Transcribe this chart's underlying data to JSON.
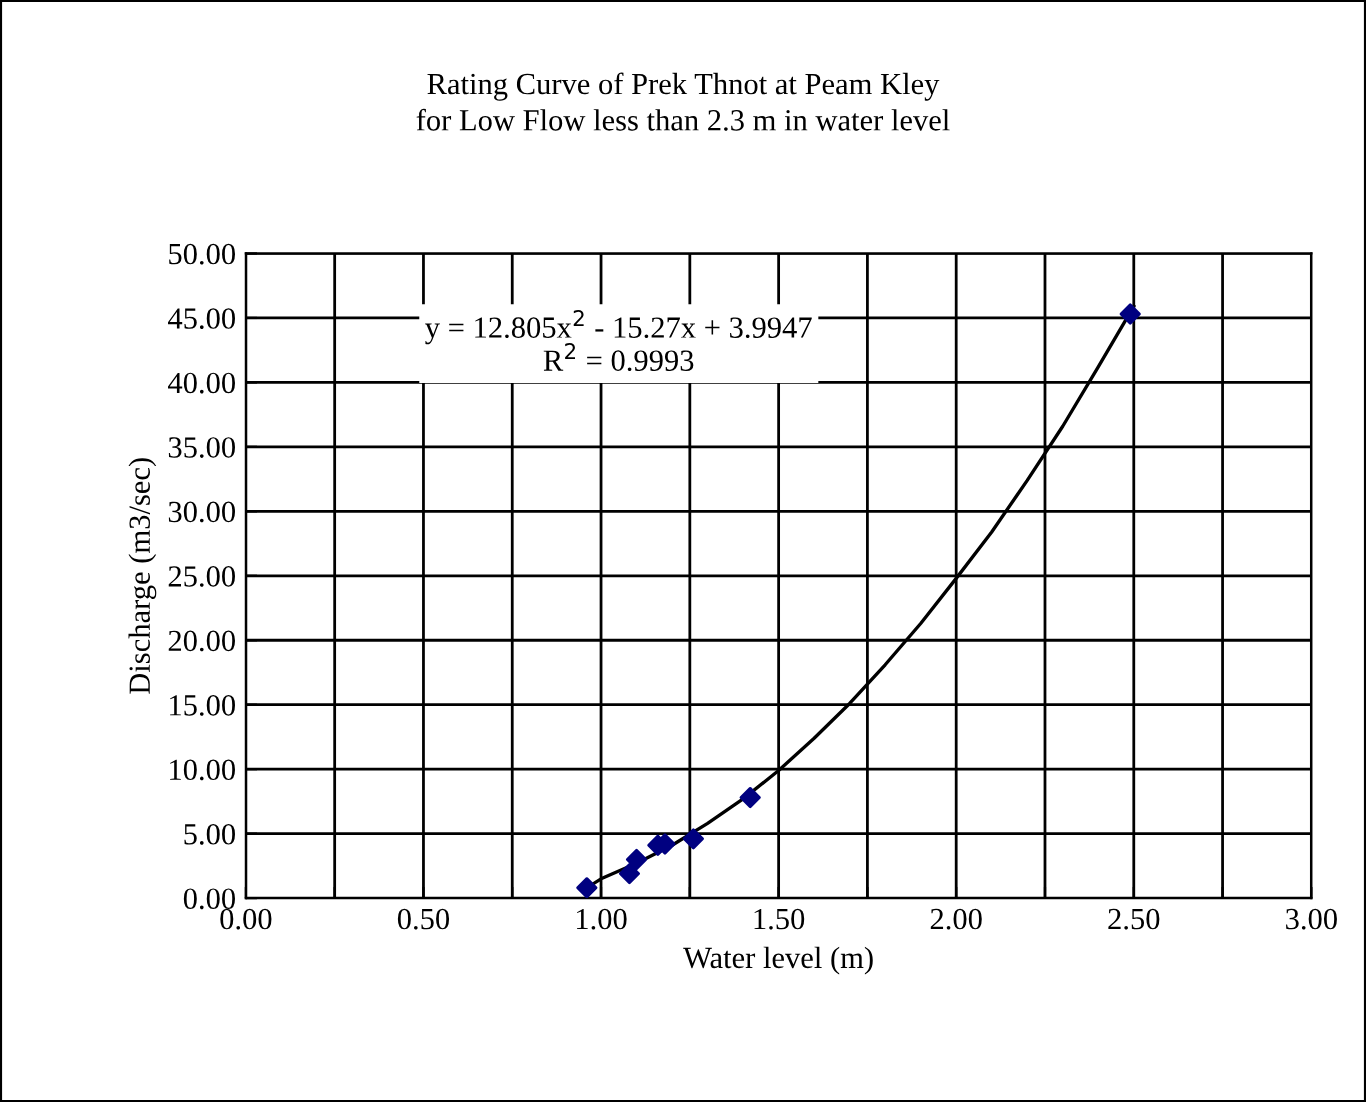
{
  "chart_data": {
    "type": "scatter",
    "title": "Rating Curve of Prek Thnot at Peam Kley\nfor Low Flow less than 2.3 m in water level",
    "xlabel": "Water level (m)",
    "ylabel": "Discharge (m3/sec)",
    "series": [
      {
        "color": "#000080",
        "marker": "diamond",
        "x": [
          0.96,
          1.08,
          1.1,
          1.16,
          1.18,
          1.26,
          1.42,
          2.49
        ],
        "values": [
          0.8,
          1.9,
          3.0,
          4.1,
          4.2,
          4.6,
          7.8,
          45.3
        ]
      },
      {
        "type": "line",
        "color": "#000000",
        "marker": "none",
        "line_style": "solid",
        "x": [
          0.96,
          1.0,
          1.1,
          1.2,
          1.3,
          1.4,
          1.5,
          1.6,
          1.7,
          1.8,
          1.9,
          2.0,
          2.1,
          2.2,
          2.3,
          2.4,
          2.5
        ],
        "values": [
          0.8,
          1.5,
          2.7,
          4.1,
          5.8,
          7.7,
          9.9,
          12.4,
          15.1,
          18.1,
          21.3,
          24.8,
          28.4,
          32.4,
          36.6,
          41.2,
          45.9
        ]
      }
    ],
    "annotations": [
      "y = 12.805x$^{2}$ - 15.27x + 3.9947\nR$^{2}$ = 0.9993"
    ],
    "xlim": [
      0,
      3
    ],
    "ylim": [
      0,
      50
    ],
    "xticks": [
      {
        "value": 0,
        "label": "0.00"
      },
      {
        "value": 0.25,
        "label": null
      },
      {
        "value": 0.5,
        "label": "0.50"
      },
      {
        "value": 0.75,
        "label": null
      },
      {
        "value": 1,
        "label": "1.00"
      },
      {
        "value": 1.25,
        "label": null
      },
      {
        "value": 1.5,
        "label": "1.50"
      },
      {
        "value": 1.75,
        "label": null
      },
      {
        "value": 2,
        "label": "2.00"
      },
      {
        "value": 2.25,
        "label": null
      },
      {
        "value": 2.5,
        "label": "2.50"
      },
      {
        "value": 2.75,
        "label": null
      },
      {
        "value": 3,
        "label": "3.00"
      }
    ],
    "yticks": [
      {
        "value": 0,
        "label": "0.00"
      },
      {
        "value": 5,
        "label": "5.00"
      },
      {
        "value": 10,
        "label": "10.00"
      },
      {
        "value": 15,
        "label": "15.00"
      },
      {
        "value": 20,
        "label": "20.00"
      },
      {
        "value": 25,
        "label": "25.00"
      },
      {
        "value": 30,
        "label": "30.00"
      },
      {
        "value": 35,
        "label": "35.00"
      },
      {
        "value": 40,
        "label": "40.00"
      },
      {
        "value": 45,
        "label": "45.00"
      },
      {
        "value": 50,
        "label": "50.00"
      }
    ],
    "grid": true,
    "legend": false
  }
}
